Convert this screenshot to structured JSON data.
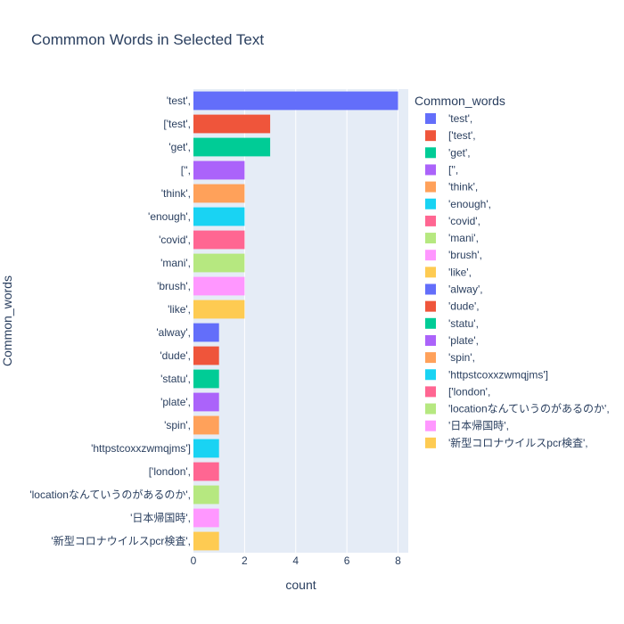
{
  "chart_data": {
    "type": "bar",
    "orientation": "horizontal",
    "title": "Commmon Words in Selected Text",
    "xlabel": "count",
    "ylabel": "Common_words",
    "legend_title": "Common_words",
    "legend_placement": "right",
    "xlim": [
      0,
      8.4
    ],
    "xticks": [
      0,
      2,
      4,
      6,
      8
    ],
    "grid": true,
    "categories": [
      "'test',",
      "['test',",
      "'get',",
      "['',",
      "'think',",
      "'enough',",
      "'covid',",
      "'mani',",
      "'brush',",
      "'like',",
      "'alway',",
      "'dude',",
      "'statu',",
      "'plate',",
      "'spin',",
      "'httpstcoxxzwmqjms']",
      "['london',",
      "'locationなんていうのがあるのか',",
      "'日本帰国時',",
      "'新型コロナウイルスpcr検査',"
    ],
    "values": [
      8,
      3,
      3,
      2,
      2,
      2,
      2,
      2,
      2,
      2,
      1,
      1,
      1,
      1,
      1,
      1,
      1,
      1,
      1,
      1
    ],
    "colors": [
      "#636efa",
      "#EF553B",
      "#00cc96",
      "#ab63fa",
      "#FFA15A",
      "#19d3f3",
      "#FF6692",
      "#B6E880",
      "#FF97FF",
      "#FECB52"
    ]
  }
}
